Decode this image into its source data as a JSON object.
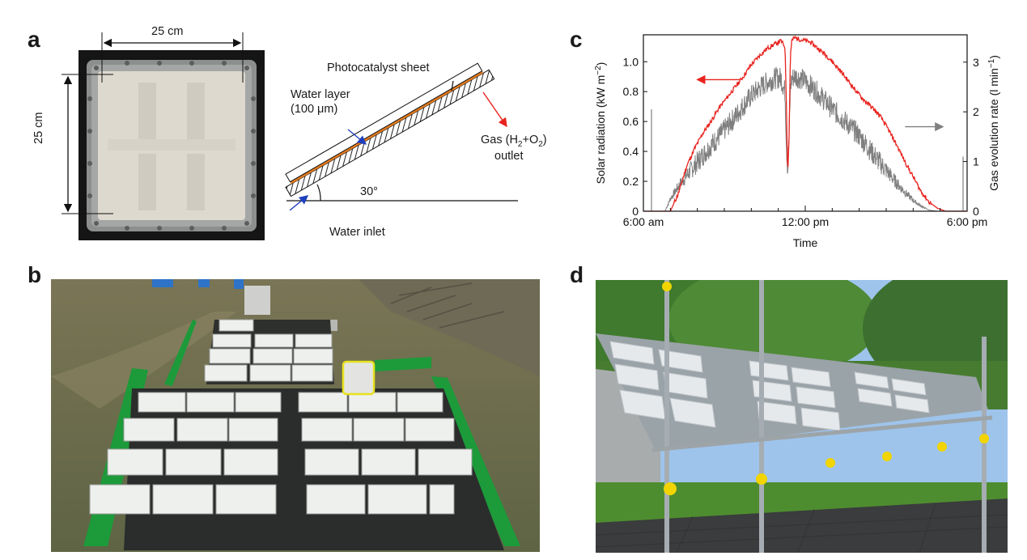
{
  "figure": {
    "panel_a": {
      "letter": "a",
      "photo_width_label": "25 cm",
      "photo_height_label": "25 cm",
      "photocatalyst_label": "Photocatalyst sheet",
      "water_layer_label_line1": "Water layer",
      "water_layer_label_line2": "(100 μm)",
      "gas_label_line1": "Gas (H",
      "gas_sub1": "2",
      "gas_mid": "+O",
      "gas_sub2": "2",
      "gas_close": ")",
      "gas_label_line2": "outlet",
      "angle_label": "30°",
      "water_inlet_label": "Water inlet"
    },
    "panel_b": {
      "letter": "b"
    },
    "panel_c": {
      "letter": "c"
    },
    "panel_d": {
      "letter": "d"
    },
    "colors": {
      "solar_series": "#e8231e",
      "gas_series": "#7f7f7f",
      "water_arrow": "#1f3fbf",
      "gas_arrow": "#e8231e",
      "catalyst_layer": "#e07a1f"
    }
  },
  "chart_data": {
    "type": "line",
    "x_tick_labels": [
      "6:00 am",
      "12:00 pm",
      "6:00 pm"
    ],
    "xlabel": "Time",
    "ylabel_left_main": "Solar radiation (kW m",
    "ylabel_left_sup": "−2",
    "ylabel_left_close": ")",
    "ylabel_right_main": "Gas evolution rate (l min",
    "ylabel_right_sup": "−1",
    "ylabel_right_close": ")",
    "y_left_ticks": [
      "0",
      "0.2",
      "0.4",
      "0.6",
      "0.8",
      "1.0"
    ],
    "y_right_ticks": [
      "0",
      "1",
      "2",
      "3"
    ],
    "ylim_left": [
      0,
      1.18
    ],
    "ylim_right": [
      0,
      3.55
    ],
    "xlim_hours": [
      6,
      18
    ],
    "series": [
      {
        "axis": "left",
        "x_hours": [
          6.0,
          6.5,
          7.0,
          7.3,
          7.6,
          7.9,
          8.2,
          8.5,
          8.8,
          9.1,
          9.4,
          9.7,
          10.0,
          10.3,
          10.6,
          10.9,
          11.1,
          11.25,
          11.3,
          11.35,
          11.4,
          11.45,
          11.5,
          11.6,
          11.8,
          12.0,
          12.2,
          12.4,
          12.6,
          12.8,
          13.0,
          13.3,
          13.6,
          13.9,
          14.2,
          14.5,
          14.8,
          15.1,
          15.4,
          15.7,
          16.0,
          16.3,
          16.6,
          16.9,
          17.2,
          17.5,
          17.7,
          18.0
        ],
        "values": [
          0,
          0,
          0,
          0.12,
          0.3,
          0.42,
          0.52,
          0.6,
          0.69,
          0.76,
          0.83,
          0.9,
          0.98,
          1.04,
          1.09,
          1.12,
          1.14,
          1.1,
          0.72,
          0.24,
          0.5,
          1.05,
          1.14,
          1.16,
          1.15,
          1.14,
          1.13,
          1.1,
          1.07,
          1.04,
          1.0,
          0.94,
          0.87,
          0.8,
          0.74,
          0.69,
          0.63,
          0.54,
          0.44,
          0.33,
          0.23,
          0.13,
          0.06,
          0.02,
          0,
          0,
          0,
          0
        ]
      },
      {
        "axis": "right",
        "x_hours": [
          6.0,
          6.5,
          6.8,
          7.0,
          7.3,
          7.6,
          7.9,
          8.2,
          8.5,
          8.8,
          9.1,
          9.4,
          9.7,
          10.0,
          10.3,
          10.6,
          10.9,
          11.1,
          11.25,
          11.3,
          11.35,
          11.4,
          11.45,
          11.5,
          11.6,
          11.8,
          12.0,
          12.2,
          12.4,
          12.6,
          12.8,
          13.0,
          13.3,
          13.6,
          13.9,
          14.2,
          14.5,
          14.8,
          15.1,
          15.4,
          15.7,
          16.0,
          16.3,
          16.6,
          16.9,
          17.2,
          17.5,
          18.0
        ],
        "values": [
          0,
          0,
          0,
          0.25,
          0.5,
          0.72,
          0.92,
          1.12,
          1.32,
          1.5,
          1.7,
          1.9,
          2.12,
          2.32,
          2.48,
          2.6,
          2.68,
          2.68,
          2.4,
          1.4,
          0.8,
          1.5,
          2.5,
          2.66,
          2.72,
          2.68,
          2.62,
          2.52,
          2.42,
          2.3,
          2.18,
          2.06,
          1.9,
          1.74,
          1.58,
          1.38,
          1.16,
          0.96,
          0.76,
          0.56,
          0.38,
          0.22,
          0.1,
          0.02,
          0,
          0,
          0,
          0
        ]
      }
    ],
    "annotation_arrows": [
      {
        "series_axis": "left",
        "direction": "left"
      },
      {
        "series_axis": "right",
        "direction": "right"
      }
    ]
  }
}
